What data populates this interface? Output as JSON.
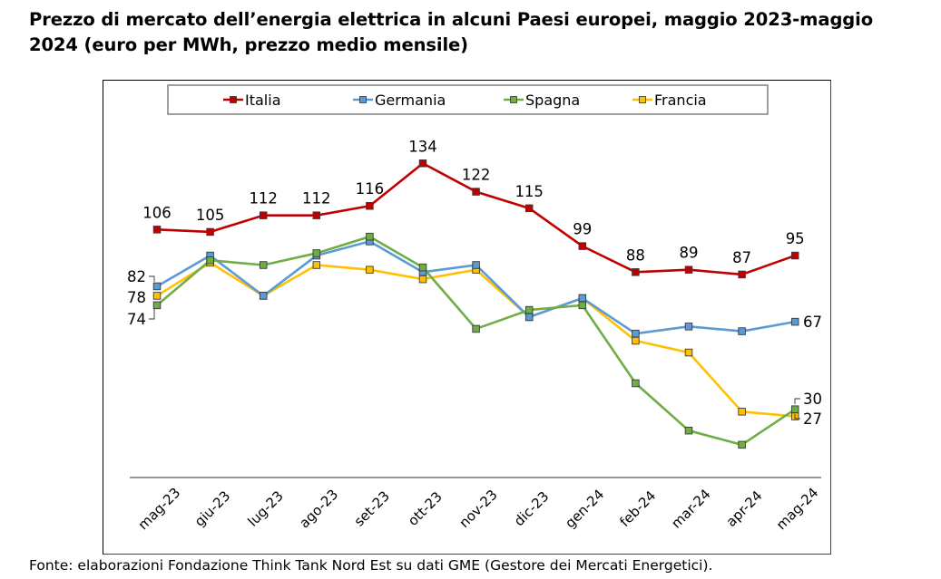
{
  "chart_data": {
    "type": "line",
    "title": "Prezzo di mercato dell’energia elettrica in alcuni Paesi europei, maggio 2023-maggio 2024 (euro per MWh, prezzo medio mensile)",
    "xlabel": "",
    "ylabel": "",
    "ylim": [
      0,
      145
    ],
    "grid": false,
    "legend_position": "top",
    "categories": [
      "mag-23",
      "giu-23",
      "lug-23",
      "ago-23",
      "set-23",
      "ott-23",
      "nov-23",
      "dic-23",
      "gen-24",
      "feb-24",
      "mar-24",
      "apr-24",
      "mag-24"
    ],
    "series": [
      {
        "name": "Italia",
        "color": "#C00000",
        "values": [
          106,
          105,
          112,
          112,
          116,
          134,
          122,
          115,
          99,
          88,
          89,
          87,
          95
        ],
        "labels": [
          "106",
          "105",
          "112",
          "112",
          "116",
          "134",
          "122",
          "115",
          "99",
          "88",
          "89",
          "87",
          "95"
        ]
      },
      {
        "name": "Germania",
        "color": "#5B9BD5",
        "values": [
          82,
          95,
          78,
          95,
          101,
          88,
          91,
          69,
          77,
          62,
          65,
          63,
          67
        ],
        "labels": [
          "82",
          null,
          null,
          null,
          null,
          null,
          null,
          null,
          null,
          null,
          null,
          null,
          "67"
        ]
      },
      {
        "name": "Spagna",
        "color": "#70AD47",
        "values": [
          74,
          93,
          91,
          96,
          103,
          90,
          64,
          72,
          74,
          41,
          21,
          15,
          30
        ],
        "labels": [
          "74",
          null,
          null,
          null,
          null,
          null,
          null,
          null,
          null,
          null,
          null,
          null,
          "30"
        ]
      },
      {
        "name": "Francia",
        "color": "#FFC000",
        "values": [
          78,
          92,
          78,
          91,
          89,
          85,
          89,
          69,
          77,
          59,
          54,
          29,
          27
        ],
        "labels": [
          "78",
          null,
          null,
          null,
          null,
          null,
          null,
          null,
          null,
          null,
          null,
          null,
          "27"
        ]
      }
    ]
  },
  "source": "Fonte: elaborazioni Fondazione Think Tank Nord Est su dati GME (Gestore dei Mercati Energetici)."
}
